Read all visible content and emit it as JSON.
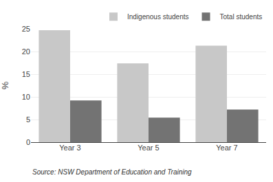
{
  "chart_data": {
    "type": "bar",
    "categories": [
      "Year 3",
      "Year 5",
      "Year 7"
    ],
    "series": [
      {
        "name": "Indigenous students",
        "color": "#c8c8c8",
        "values": [
          24.7,
          17.4,
          21.3
        ]
      },
      {
        "name": "Total students",
        "color": "#737373",
        "values": [
          9.2,
          5.4,
          7.2
        ]
      }
    ],
    "ylabel": "%",
    "ylim": [
      0,
      25
    ],
    "yticks": [
      0,
      5,
      10,
      15,
      20,
      25
    ],
    "grid": true,
    "legend": "upper right",
    "annotations": [
      "Source: NSW Department of Education and Training"
    ]
  }
}
